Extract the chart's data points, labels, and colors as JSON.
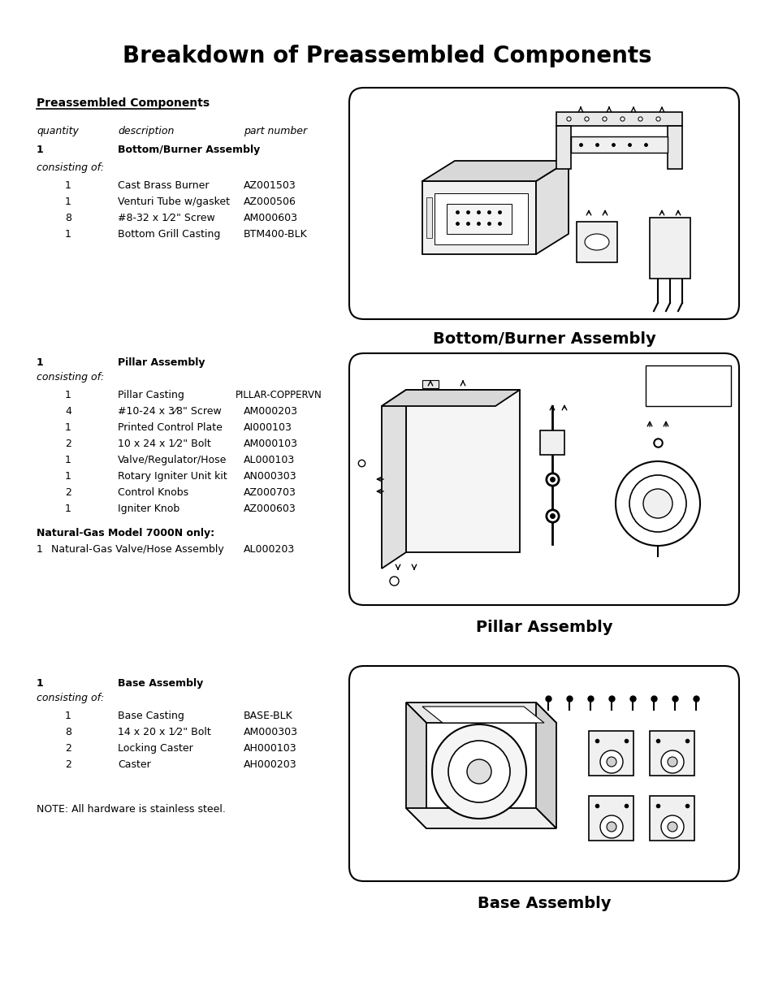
{
  "title": "Breakdown of Preassembled Components",
  "bg_color": "#ffffff",
  "section1_header": "Preassembled Components",
  "col_headers": [
    "quantity",
    "description",
    "part number"
  ],
  "assembly1_name": "Bottom/Burner Assembly",
  "assembly1_qty": "1",
  "assembly1_consisting": "consisting of:",
  "assembly1_parts": [
    [
      "1",
      "Cast Brass Burner",
      "AZ001503"
    ],
    [
      "1",
      "Venturi Tube w/gasket",
      "AZ000506"
    ],
    [
      "8",
      "#8-32 x 1⁄2\" Screw",
      "AM000603"
    ],
    [
      "1",
      "Bottom Grill Casting",
      "BTM400-BLK"
    ]
  ],
  "assembly1_label": "Bottom/Burner Assembly",
  "assembly2_name": "Pillar Assembly",
  "assembly2_qty": "1",
  "assembly2_consisting": "consisting of:",
  "assembly2_parts": [
    [
      "1",
      "Pillar Casting",
      "PILLAR-COPPERVN"
    ],
    [
      "4",
      "#10-24 x 3⁄8\" Screw",
      "AM000203"
    ],
    [
      "1",
      "Printed Control Plate",
      "AI000103"
    ],
    [
      "2",
      "10 x 24 x 1⁄2\" Bolt",
      "AM000103"
    ],
    [
      "1",
      "Valve/Regulator/Hose",
      "AL000103"
    ],
    [
      "1",
      "Rotary Igniter Unit kit",
      "AN000303"
    ],
    [
      "2",
      "Control Knobs",
      "AZ000703"
    ],
    [
      "1",
      "Igniter Knob",
      "AZ000603"
    ]
  ],
  "assembly2_label": "Pillar Assembly",
  "natural_gas_header": "Natural-Gas Model 7000N only:",
  "natural_gas_parts": [
    [
      "1",
      "Natural-Gas Valve/Hose Assembly",
      "AL000203"
    ]
  ],
  "assembly3_name": "Base Assembly",
  "assembly3_qty": "1",
  "assembly3_consisting": "consisting of:",
  "assembly3_parts": [
    [
      "1",
      "Base Casting",
      "BASE-BLK"
    ],
    [
      "8",
      "14 x 20 x 1⁄2\" Bolt",
      "AM000303"
    ],
    [
      "2",
      "Locking Caster",
      "AH000103"
    ],
    [
      "2",
      "Caster",
      "AH000203"
    ]
  ],
  "assembly3_label": "Base Assembly",
  "note": "NOTE: All hardware is stainless steel.",
  "model7000n_line1": "Model 7000N",
  "model7000n_line2": "only"
}
